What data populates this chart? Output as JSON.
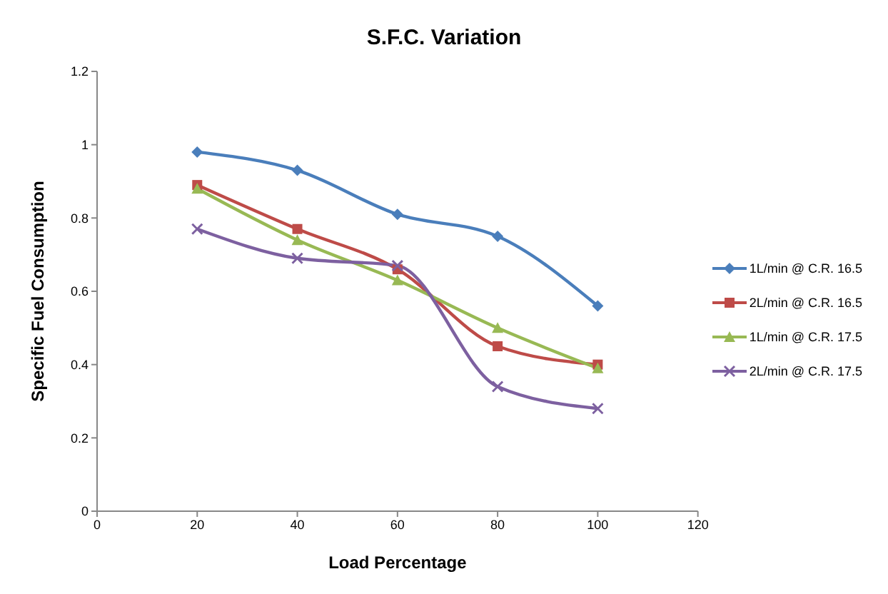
{
  "chart_data": {
    "type": "line",
    "title": "S.F.C. Variation",
    "xlabel": "Load Percentage",
    "ylabel": "Specific Fuel Consumption",
    "x": [
      20,
      40,
      60,
      80,
      100
    ],
    "xlim": [
      0,
      120
    ],
    "xticks": [
      0,
      20,
      40,
      60,
      80,
      100,
      120
    ],
    "ylim": [
      0,
      1.2
    ],
    "yticks": [
      0,
      0.2,
      0.4,
      0.6,
      0.8,
      1,
      1.2
    ],
    "grid": false,
    "legend": "right",
    "series": [
      {
        "name": "1L/min @ C.R. 16.5",
        "color": "#4a7ebb",
        "marker": "diamond",
        "values": [
          0.98,
          0.93,
          0.81,
          0.75,
          0.56
        ]
      },
      {
        "name": "2L/min @ C.R. 16.5",
        "color": "#be4b48",
        "marker": "square",
        "values": [
          0.89,
          0.77,
          0.66,
          0.45,
          0.4
        ]
      },
      {
        "name": "1L/min @ C.R. 17.5",
        "color": "#98b954",
        "marker": "triangle",
        "values": [
          0.88,
          0.74,
          0.63,
          0.5,
          0.39
        ]
      },
      {
        "name": "2L/min @ C.R. 17.5",
        "color": "#7d60a0",
        "marker": "cross",
        "values": [
          0.77,
          0.69,
          0.67,
          0.34,
          0.28
        ]
      }
    ]
  }
}
